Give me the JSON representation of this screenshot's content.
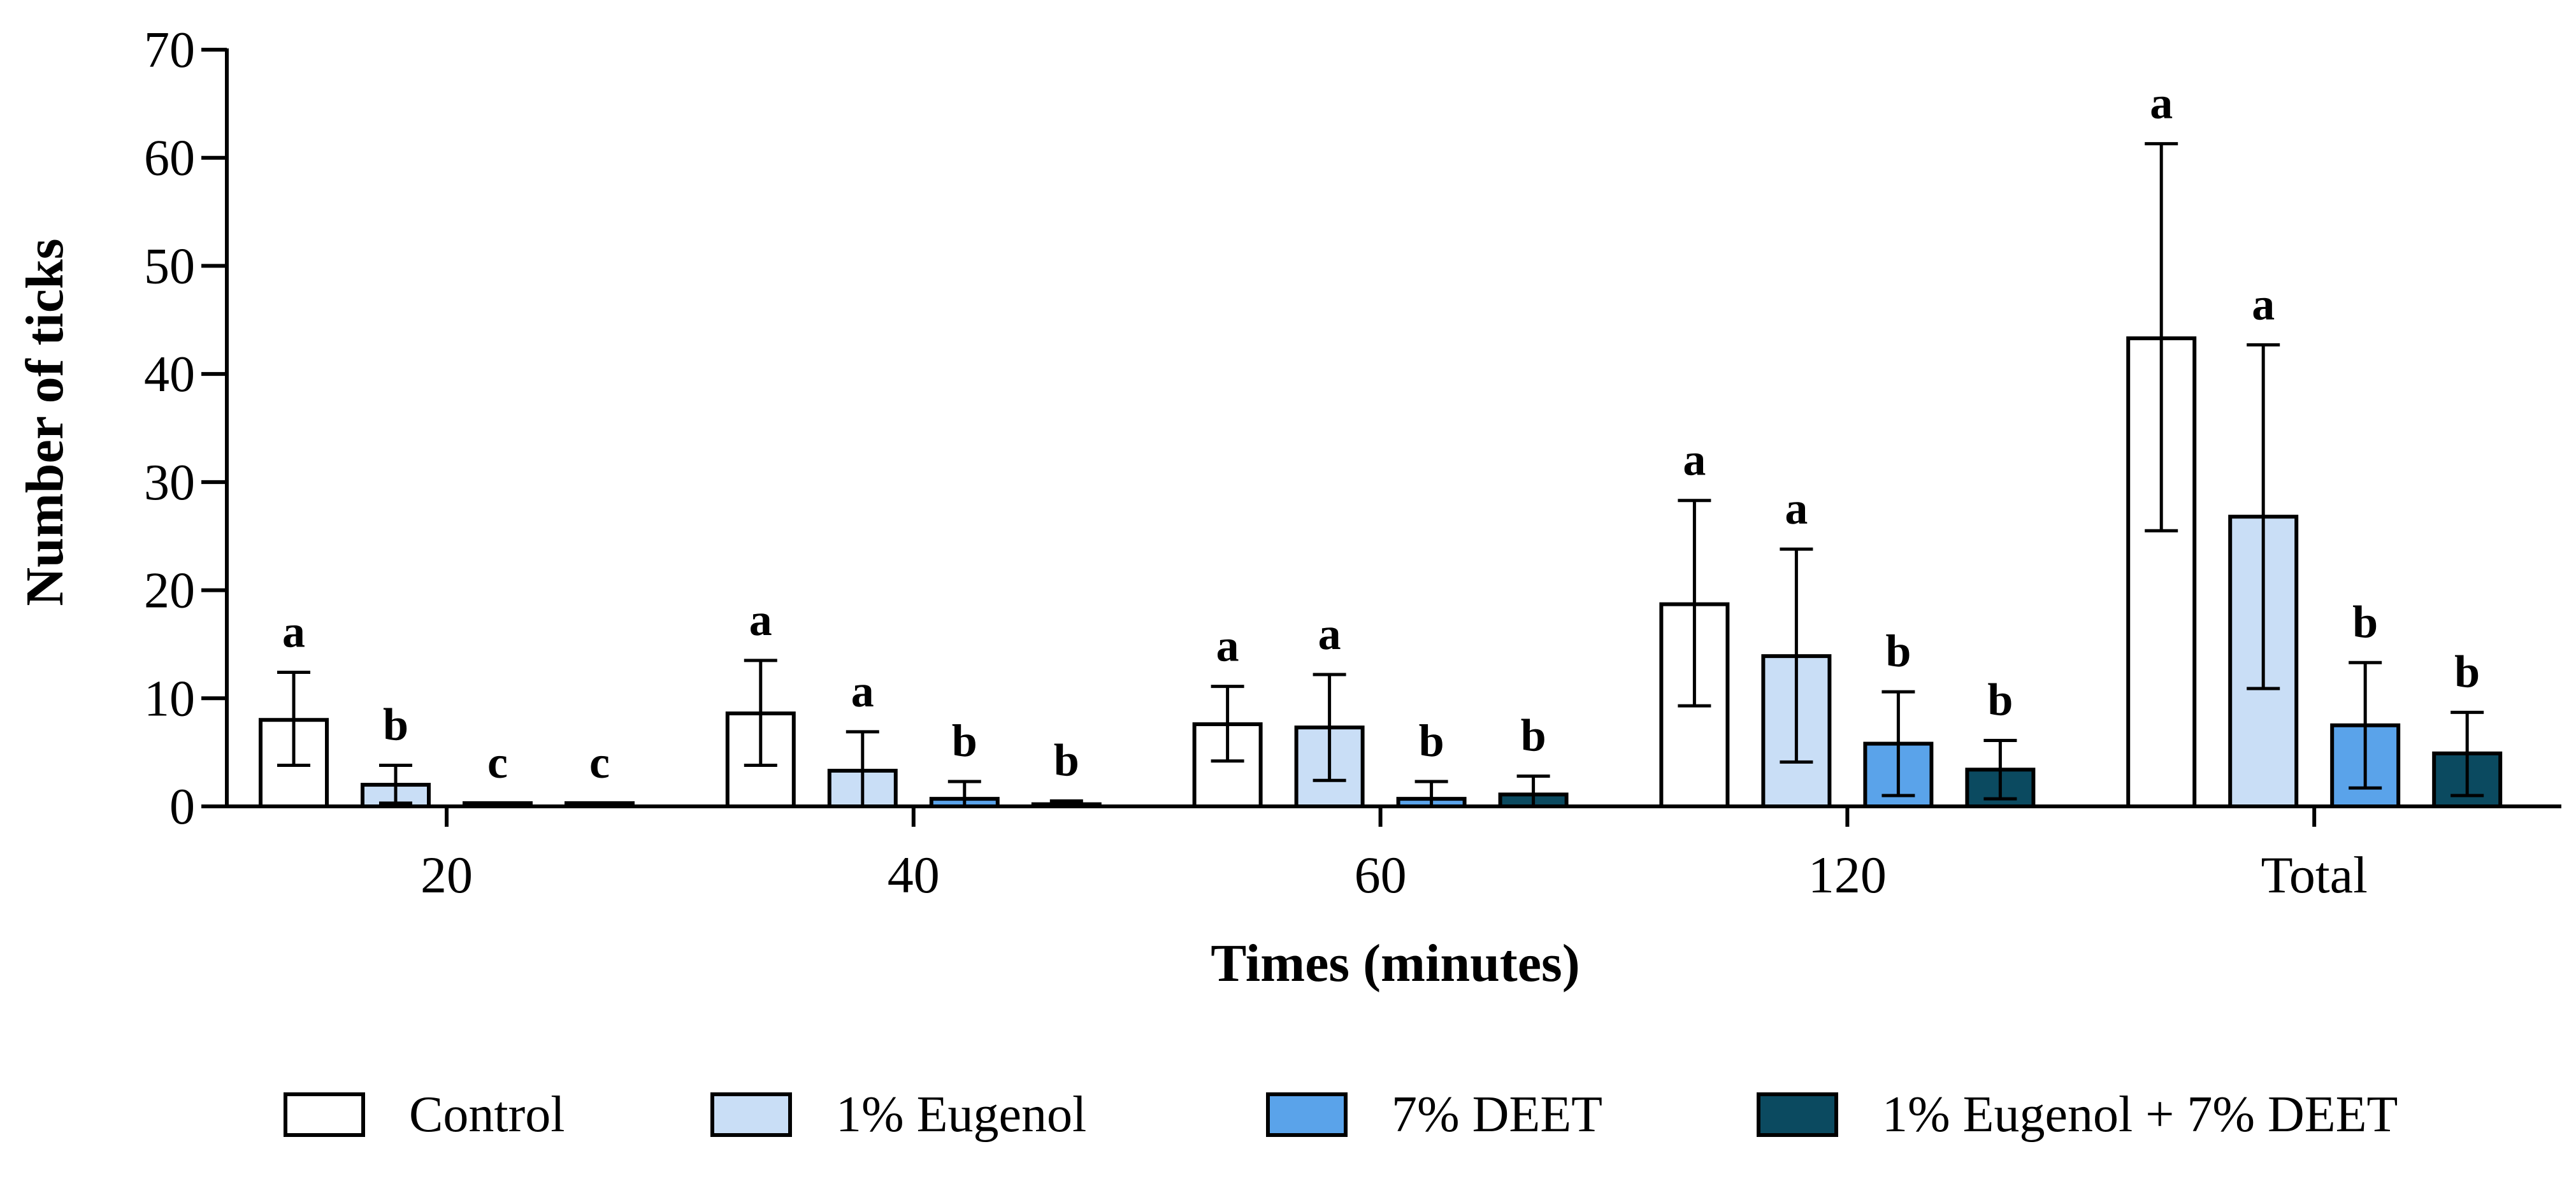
{
  "chart_data": {
    "type": "bar",
    "title": "",
    "xlabel": "Times (minutes)",
    "ylabel": "Number of ticks",
    "ylim": [
      0,
      70
    ],
    "yticks": [
      0,
      10,
      20,
      30,
      40,
      50,
      60,
      70
    ],
    "categories": [
      "20",
      "40",
      "60",
      "120",
      "Total"
    ],
    "legend_position": "bottom",
    "series": [
      {
        "name": "Control",
        "color": "#ffffff",
        "values": [
          8.0,
          8.6,
          7.6,
          18.7,
          43.3
        ],
        "err_lower": [
          3.8,
          3.8,
          4.2,
          9.3,
          25.5
        ],
        "err_upper": [
          12.4,
          13.5,
          11.1,
          28.3,
          61.3
        ],
        "letters": [
          "a",
          "a",
          "a",
          "a",
          "a"
        ]
      },
      {
        "name": "1% Eugenol",
        "color": "#c9def6",
        "values": [
          2.0,
          3.3,
          7.3,
          13.9,
          26.8
        ],
        "err_lower": [
          0.3,
          0.0,
          2.4,
          4.1,
          10.9
        ],
        "err_upper": [
          3.8,
          6.9,
          12.2,
          23.8,
          42.7
        ],
        "letters": [
          "b",
          "a",
          "a",
          "a",
          "a"
        ]
      },
      {
        "name": "7% DEET",
        "color": "#5aa3ea",
        "values": [
          0.3,
          0.7,
          0.7,
          5.8,
          7.5
        ],
        "err_lower": [
          0.3,
          0.0,
          0.0,
          1.0,
          1.7
        ],
        "err_upper": [
          0.3,
          2.3,
          2.3,
          10.6,
          13.3
        ],
        "letters": [
          "c",
          "b",
          "b",
          "b",
          "b"
        ]
      },
      {
        "name": "1% Eugenol + 7% DEET",
        "color": "#0b4a60",
        "values": [
          0.3,
          0.2,
          1.1,
          3.4,
          4.9
        ],
        "err_lower": [
          0.3,
          0.0,
          0.0,
          0.7,
          1.0
        ],
        "err_upper": [
          0.3,
          0.5,
          2.8,
          6.1,
          8.7
        ],
        "letters": [
          "c",
          "b",
          "b",
          "b",
          "b"
        ]
      }
    ]
  }
}
